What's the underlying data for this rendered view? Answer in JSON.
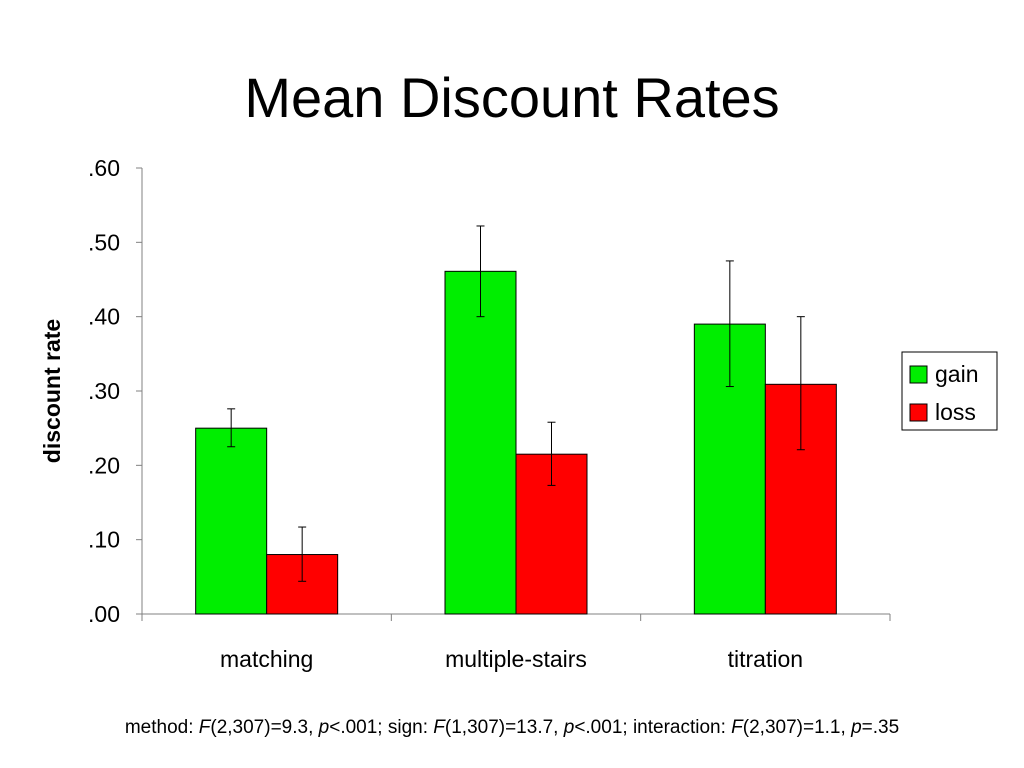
{
  "slide": {
    "title": "Mean Discount Rates"
  },
  "chart_data": {
    "type": "bar",
    "title": "Mean Discount Rates",
    "xlabel": "",
    "ylabel": "discount rate",
    "ylim": [
      0,
      0.6
    ],
    "yticks": [
      0,
      0.1,
      0.2,
      0.3,
      0.4,
      0.5,
      0.6
    ],
    "ytick_labels": [
      ".00",
      ".10",
      ".20",
      ".30",
      ".40",
      ".50",
      ".60"
    ],
    "categories": [
      "matching",
      "multiple-stairs",
      "titration"
    ],
    "series": [
      {
        "name": "gain",
        "color": "#00ee00",
        "values": [
          0.25,
          0.461,
          0.39
        ],
        "error_low": [
          0.225,
          0.4,
          0.306
        ],
        "error_high": [
          0.276,
          0.522,
          0.475
        ]
      },
      {
        "name": "loss",
        "color": "#ff0000",
        "values": [
          0.08,
          0.215,
          0.309
        ],
        "error_low": [
          0.044,
          0.173,
          0.221
        ],
        "error_high": [
          0.117,
          0.258,
          0.4
        ]
      }
    ],
    "legend": "right",
    "grid": false
  },
  "footnote": {
    "parts": [
      {
        "text": "method: ",
        "italic": false
      },
      {
        "text": "F",
        "italic": true
      },
      {
        "text": "(2,307)=9.3, ",
        "italic": false
      },
      {
        "text": "p",
        "italic": true
      },
      {
        "text": "<.001; sign: ",
        "italic": false
      },
      {
        "text": "F",
        "italic": true
      },
      {
        "text": "(1,307)=13.7, ",
        "italic": false
      },
      {
        "text": "p",
        "italic": true
      },
      {
        "text": "<.001; interaction: ",
        "italic": false
      },
      {
        "text": "F",
        "italic": true
      },
      {
        "text": "(2,307)=1.1, ",
        "italic": false
      },
      {
        "text": "p",
        "italic": true
      },
      {
        "text": "=.35",
        "italic": false
      }
    ]
  }
}
